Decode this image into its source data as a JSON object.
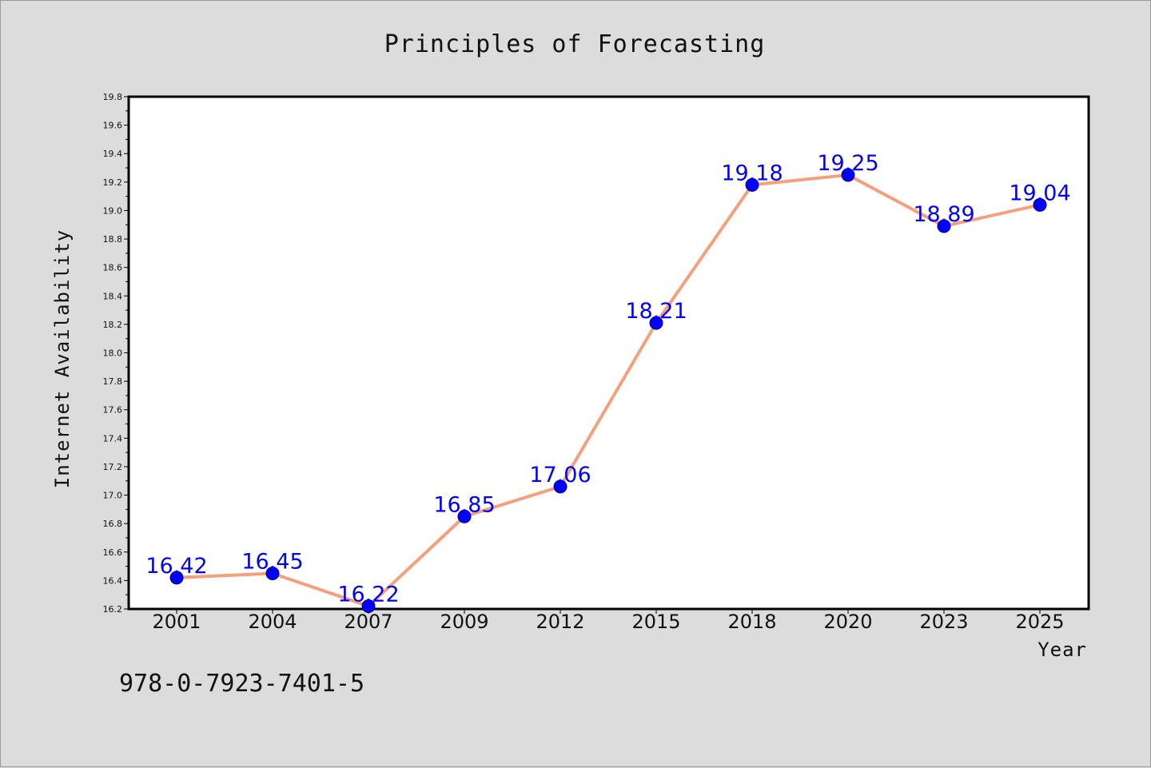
{
  "chart_data": {
    "type": "line",
    "title": "Principles of Forecasting",
    "xlabel": "Year",
    "ylabel": "Internet Availability",
    "categories": [
      "2001",
      "2004",
      "2007",
      "2009",
      "2012",
      "2015",
      "2018",
      "2020",
      "2023",
      "2025"
    ],
    "series": [
      {
        "values": [
          16.42,
          16.45,
          16.22,
          16.85,
          17.06,
          18.21,
          19.18,
          19.25,
          18.89,
          19.04
        ],
        "data_labels": [
          "16.42",
          "16.45",
          "16.22",
          "16.85",
          "17.06",
          "18.21",
          "19.18",
          "19.25",
          "18.89",
          "19.04"
        ]
      }
    ],
    "ylim": [
      16.2,
      19.8
    ],
    "y_ticks": [
      "16.2",
      "16.4",
      "16.6",
      "16.8",
      "17.0",
      "17.2",
      "17.4",
      "17.6",
      "17.8",
      "18.0",
      "18.2",
      "18.4",
      "18.6",
      "18.8",
      "19.0",
      "19.2",
      "19.4",
      "19.6",
      "19.8"
    ],
    "grid": false,
    "legend": "none",
    "colors": {
      "line": "#f4a07c",
      "marker": "#0000ff",
      "marker_edge": "#000080",
      "data_label": "#0000ff",
      "plot_background": "#ffffff",
      "figure_background": "#dcdcdc"
    }
  },
  "footer": {
    "isbn": "978-0-7923-7401-5"
  }
}
